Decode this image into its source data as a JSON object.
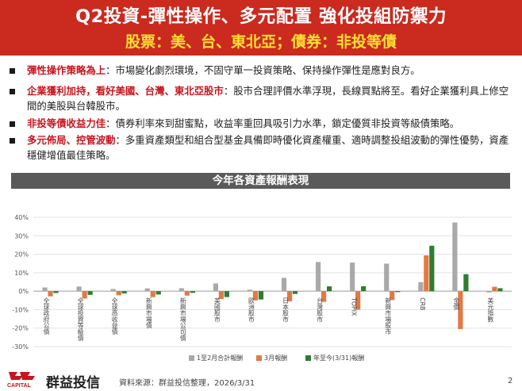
{
  "header": {
    "title": "Q2投資-彈性操作、多元配置 強化投組防禦力",
    "subtitle": "股票：美、台、東北亞；債券：非投等債"
  },
  "bullets": [
    {
      "highlight": "彈性操作策略為上",
      "text": "：市場變化劇烈環境，不固守單一投資策略、保持操作彈性是應對良方。"
    },
    {
      "highlight": "企業獲利加持，看好美國、台灣、東北亞股市",
      "text": "：股市合理評價水準浮現，長線買點將至。看好企業獲利具上修空間的美股與台韓股市。"
    },
    {
      "highlight": "非投等債收益力佳",
      "text": "：債券利率來到甜蜜點，收益率重回具吸引力水準，鎖定優質非投資等級債策略。"
    },
    {
      "highlight": "多元佈局、控管波動",
      "text": "：多重資產類型和組合型基金具備即時優化資產權重、適時調整投組波動的彈性優勢，資產穩健增值最佳策略。"
    }
  ],
  "chart_data": {
    "type": "bar",
    "title": "今年各資產報酬表現",
    "ylim": [
      -30,
      40
    ],
    "yticks": [
      "40%",
      "30%",
      "20%",
      "10%",
      "0%",
      "-10%",
      "-20%",
      "-30%"
    ],
    "grid": true,
    "legend_position": "bottom",
    "categories": [
      "全球政府公債",
      "全球投資等級債",
      "全球高收益債",
      "新興市場債",
      "新興市場公司債",
      "美國股市",
      "歐洲股市",
      "日本股市",
      "台灣股市",
      "TOPIX",
      "新興市場股市",
      "CRB",
      "金價",
      "美元指數"
    ],
    "series": [
      {
        "name": "1至2月合計報酬",
        "color": "#a9a9a9",
        "values": [
          2.0,
          2.5,
          1.2,
          1.5,
          1.6,
          4.2,
          0.8,
          7.2,
          15.8,
          15.5,
          14.9,
          4.9,
          37.2,
          -0.7
        ]
      },
      {
        "name": "3月報酬",
        "color": "#e07a45",
        "values": [
          -2.8,
          -4.0,
          -2.2,
          -3.2,
          -2.4,
          -4.2,
          -5.0,
          -5.5,
          -5.8,
          -10.0,
          -4.8,
          19.4,
          -20.5,
          2.4
        ]
      },
      {
        "name": "年至今(3/31)報酬",
        "color": "#2e7d32",
        "values": [
          -1.0,
          -2.0,
          -1.2,
          -1.8,
          -0.9,
          -3.2,
          -4.5,
          -1.5,
          2.6,
          2.7,
          -0.5,
          24.6,
          9.2,
          1.6
        ]
      }
    ]
  },
  "footer": {
    "logo_text": "CAPITAL",
    "brand": "群益投信",
    "source": "資料來源：群益投信整理，2026/3/31",
    "page": "2"
  },
  "colors": {
    "header_bg": "#cb2a1f",
    "subtitle": "#ffe033",
    "highlight": "#c8141e",
    "chart_title_bg": "#5a5a5a"
  }
}
